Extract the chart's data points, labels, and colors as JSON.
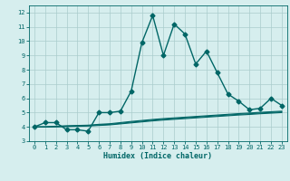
{
  "xlabel": "Humidex (Indice chaleur)",
  "bg_color": "#d6eeee",
  "grid_color": "#aacccc",
  "line_color": "#006666",
  "xlim": [
    -0.5,
    23.5
  ],
  "ylim": [
    3,
    12.5
  ],
  "xticks": [
    0,
    1,
    2,
    3,
    4,
    5,
    6,
    7,
    8,
    9,
    10,
    11,
    12,
    13,
    14,
    15,
    16,
    17,
    18,
    19,
    20,
    21,
    22,
    23
  ],
  "yticks": [
    3,
    4,
    5,
    6,
    7,
    8,
    9,
    10,
    11,
    12
  ],
  "series": [
    {
      "x": [
        0,
        1,
        2,
        3,
        4,
        5,
        6,
        7,
        8,
        9,
        10,
        11,
        12,
        13,
        14,
        15,
        16,
        17,
        18,
        19,
        20,
        21,
        22,
        23
      ],
      "y": [
        4.0,
        4.3,
        4.3,
        3.8,
        3.8,
        3.7,
        5.0,
        5.0,
        5.1,
        6.5,
        9.9,
        11.8,
        9.0,
        11.2,
        10.5,
        8.4,
        9.3,
        7.8,
        6.3,
        5.8,
        5.2,
        5.3,
        6.0,
        5.5
      ],
      "marker": "D",
      "markersize": 2.5,
      "linewidth": 1.0
    },
    {
      "x": [
        0,
        1,
        2,
        3,
        4,
        5,
        6,
        7,
        8,
        9,
        10,
        11,
        12,
        13,
        14,
        15,
        16,
        17,
        18,
        19,
        20,
        21,
        22,
        23
      ],
      "y": [
        4.0,
        4.0,
        4.05,
        4.08,
        4.1,
        4.12,
        4.18,
        4.22,
        4.3,
        4.38,
        4.45,
        4.52,
        4.58,
        4.63,
        4.68,
        4.73,
        4.78,
        4.83,
        4.88,
        4.93,
        4.97,
        5.02,
        5.06,
        5.1
      ],
      "marker": null,
      "linewidth": 0.8
    },
    {
      "x": [
        0,
        1,
        2,
        3,
        4,
        5,
        6,
        7,
        8,
        9,
        10,
        11,
        12,
        13,
        14,
        15,
        16,
        17,
        18,
        19,
        20,
        21,
        22,
        23
      ],
      "y": [
        4.0,
        4.0,
        4.02,
        4.05,
        4.07,
        4.09,
        4.14,
        4.18,
        4.25,
        4.33,
        4.4,
        4.47,
        4.53,
        4.58,
        4.63,
        4.68,
        4.73,
        4.78,
        4.83,
        4.88,
        4.92,
        4.97,
        5.01,
        5.05
      ],
      "marker": null,
      "linewidth": 0.8
    },
    {
      "x": [
        0,
        1,
        2,
        3,
        4,
        5,
        6,
        7,
        8,
        9,
        10,
        11,
        12,
        13,
        14,
        15,
        16,
        17,
        18,
        19,
        20,
        21,
        22,
        23
      ],
      "y": [
        4.0,
        4.0,
        4.0,
        4.02,
        4.04,
        4.06,
        4.1,
        4.14,
        4.21,
        4.28,
        4.35,
        4.42,
        4.48,
        4.53,
        4.58,
        4.63,
        4.68,
        4.73,
        4.78,
        4.83,
        4.87,
        4.92,
        4.96,
        5.0
      ],
      "marker": null,
      "linewidth": 0.8
    }
  ]
}
